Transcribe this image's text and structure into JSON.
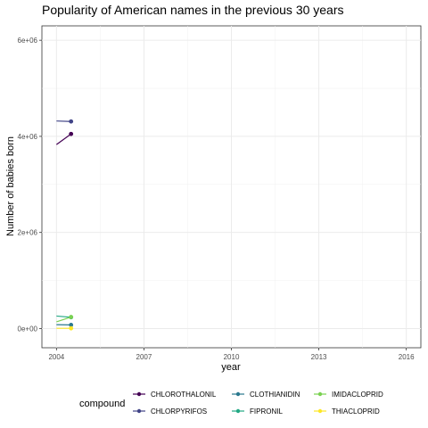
{
  "chart_data": {
    "type": "line",
    "title": "Popularity of American names in the previous 30 years",
    "xlabel": "year",
    "ylabel": "Number of babies born",
    "xlim": [
      2003.5,
      2016.5
    ],
    "ylim": [
      -400000,
      6300000
    ],
    "x_ticks": [
      2004,
      2007,
      2010,
      2013,
      2016
    ],
    "y_ticks": [
      0,
      2000000,
      4000000,
      6000000
    ],
    "y_tick_labels": [
      "0e+00",
      "2e+06",
      "4e+06",
      "6e+06"
    ],
    "grid": true,
    "legend": {
      "title": "compound",
      "position": "bottom"
    },
    "series": [
      {
        "name": "CHLOROTHALONIL",
        "color": "#440154",
        "x": [
          2004.0,
          2004.5
        ],
        "values": [
          3830000,
          4050000
        ]
      },
      {
        "name": "CHLORPYRIFOS",
        "color": "#414487",
        "x": [
          2004.0,
          2004.5
        ],
        "values": [
          4320000,
          4310000
        ]
      },
      {
        "name": "CLOTHIANIDIN",
        "color": "#2a788e",
        "x": [
          2004.0,
          2004.5
        ],
        "values": [
          80000,
          75000
        ]
      },
      {
        "name": "FIPRONIL",
        "color": "#22a884",
        "x": [
          2004.0,
          2004.5
        ],
        "values": [
          260000,
          235000
        ]
      },
      {
        "name": "IMIDACLOPRID",
        "color": "#7ad151",
        "x": [
          2004.0,
          2004.5
        ],
        "values": [
          140000,
          240000
        ]
      },
      {
        "name": "THIACLOPRID",
        "color": "#fde725",
        "x": [
          2004.0,
          2004.5
        ],
        "values": [
          5000,
          5000
        ]
      }
    ]
  }
}
